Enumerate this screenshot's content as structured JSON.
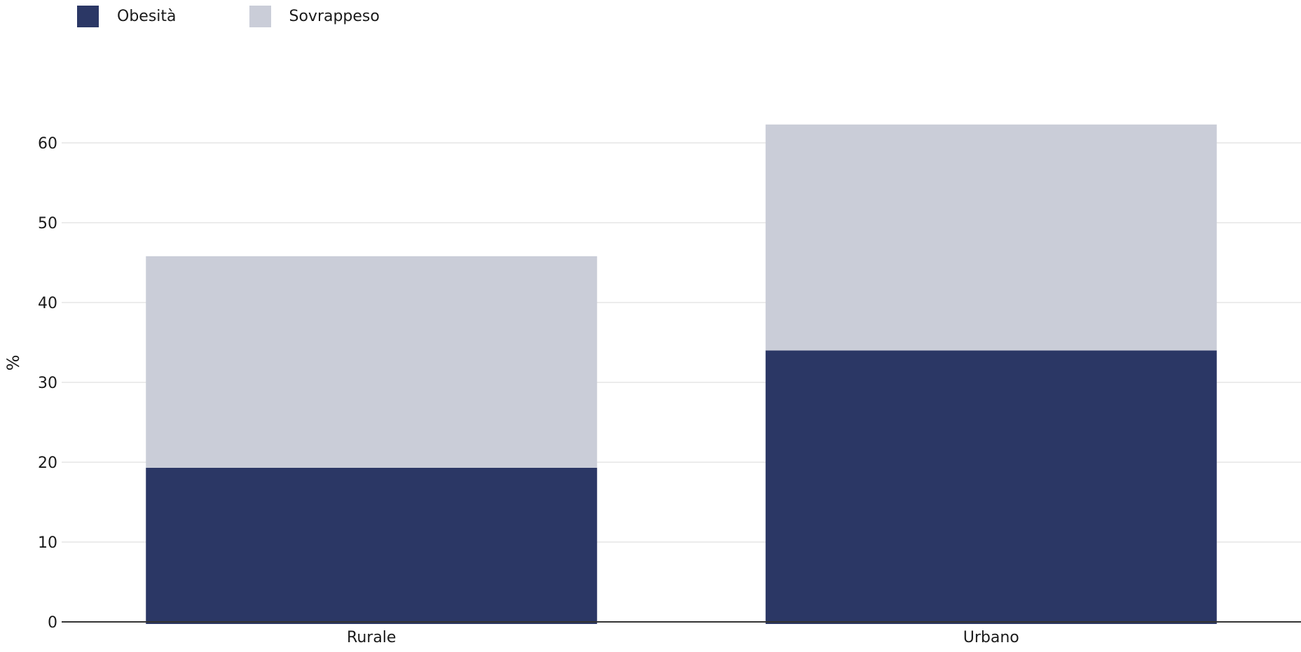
{
  "chart_data": {
    "type": "bar",
    "stacked": true,
    "categories": [
      "Rurale",
      "Urbano"
    ],
    "series": [
      {
        "name": "Obesità",
        "values": [
          19.3,
          34.0
        ],
        "color": "#2b3765"
      },
      {
        "name": "Sovrappeso",
        "values": [
          26.5,
          28.3
        ],
        "color": "#cacdd8"
      }
    ],
    "title": "",
    "xlabel": "",
    "ylabel": "%",
    "ylim": [
      0,
      65
    ],
    "yticks": [
      0,
      10,
      20,
      30,
      40,
      50,
      60
    ],
    "grid": true,
    "legend_position": "top-left"
  }
}
